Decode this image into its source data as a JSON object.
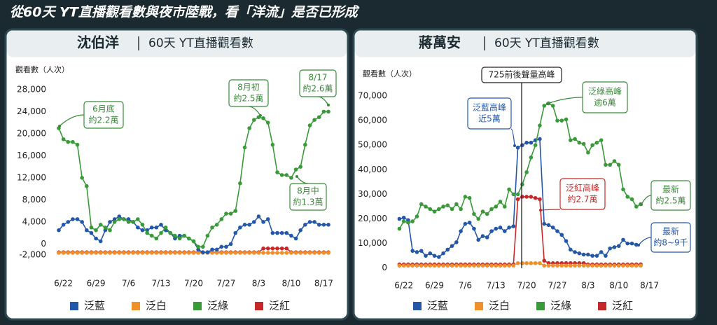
{
  "title": "從60天 YT直播觀看數與夜市陸戰，看「洋流」是否已形成",
  "chart_data": [
    {
      "type": "line",
      "title": "沈伯洋",
      "subtitle": "60天 YT直播觀看數",
      "y_label": "觀看數（人次）",
      "ylim": [
        -3000,
        29000
      ],
      "yticks": [
        {
          "value": -2000,
          "label": "-2,000"
        },
        0,
        {
          "value": 4000,
          "label": "4,000"
        },
        {
          "value": 8000,
          "label": "8,000"
        },
        {
          "value": 12000,
          "label": "12,000"
        },
        {
          "value": 16000,
          "label": "16,000"
        },
        {
          "value": 20000,
          "label": "20,000"
        },
        {
          "value": 24000,
          "label": "24,000"
        },
        {
          "value": 28000,
          "label": "28,000"
        }
      ],
      "xticks": [
        "6/22",
        "6/29",
        "7/6",
        "7/13",
        "7/20",
        "7/27",
        "8/3",
        "8/10",
        "8/17"
      ],
      "grid": false,
      "x": [
        "6/21",
        "6/22",
        "6/23",
        "6/24",
        "6/25",
        "6/26",
        "6/27",
        "6/28",
        "6/29",
        "6/30",
        "7/1",
        "7/2",
        "7/3",
        "7/4",
        "7/5",
        "7/6",
        "7/7",
        "7/8",
        "7/9",
        "7/10",
        "7/11",
        "7/12",
        "7/13",
        "7/14",
        "7/15",
        "7/16",
        "7/17",
        "7/18",
        "7/19",
        "7/20",
        "7/21",
        "7/22",
        "7/23",
        "7/24",
        "7/25",
        "7/26",
        "7/27",
        "7/28",
        "7/29",
        "7/30",
        "7/31",
        "8/1",
        "8/2",
        "8/3",
        "8/4",
        "8/5",
        "8/6",
        "8/7",
        "8/8",
        "8/9",
        "8/10",
        "8/11",
        "8/12",
        "8/13",
        "8/14",
        "8/15",
        "8/16",
        "8/17",
        "8/18"
      ],
      "series": [
        {
          "name": "泛藍",
          "color": "#2457a8",
          "values": [
            2500,
            3500,
            4000,
            4500,
            4500,
            4000,
            2500,
            2000,
            1000,
            500,
            2500,
            4000,
            4500,
            5000,
            4500,
            4500,
            4000,
            3000,
            2500,
            2500,
            3000,
            3000,
            3500,
            2500,
            2000,
            1000,
            1500,
            1500,
            1000,
            500,
            -1000,
            -1500,
            -1500,
            -1000,
            -1000,
            -500,
            -500,
            0,
            2000,
            3000,
            3500,
            3500,
            4000,
            5000,
            4000,
            4500,
            2000,
            2000,
            2000,
            2000,
            1500,
            1000,
            2500,
            3500,
            4000,
            4000,
            3500,
            3500,
            3500
          ]
        },
        {
          "name": "泛白",
          "color": "#f0902a",
          "values": [
            -1600,
            -1600,
            -1600,
            -1600,
            -1600,
            -1600,
            -1600,
            -1600,
            -1600,
            -1600,
            -1600,
            -1600,
            -1600,
            -1600,
            -1600,
            -1600,
            -1600,
            -1600,
            -1600,
            -1600,
            -1600,
            -1600,
            -1600,
            -1600,
            -1600,
            -1600,
            -1600,
            -1600,
            -1600,
            -1600,
            -1600,
            -1600,
            -1600,
            -1600,
            -1600,
            -1600,
            -1600,
            -1600,
            -1600,
            -1600,
            -1600,
            -1600,
            -1600,
            -1600,
            -1600,
            -1600,
            -1600,
            -1600,
            -1600,
            -1600,
            -1600,
            -1600,
            -1600,
            -1600,
            -1600,
            -1600,
            -1600,
            -1600,
            -1600
          ]
        },
        {
          "name": "泛綠",
          "color": "#3a9a3a",
          "values": [
            21000,
            19000,
            18500,
            18500,
            18000,
            12000,
            10500,
            3000,
            2500,
            3500,
            3000,
            2500,
            4000,
            4500,
            4500,
            4000,
            4000,
            4500,
            3500,
            2000,
            1500,
            1000,
            2000,
            3000,
            2000,
            1500,
            1000,
            1500,
            1000,
            500,
            -500,
            -500,
            1500,
            3000,
            3500,
            4500,
            5500,
            5500,
            6000,
            11000,
            17500,
            21000,
            22500,
            23000,
            22800,
            22000,
            18000,
            13000,
            12500,
            12500,
            12000,
            13500,
            14000,
            18000,
            21500,
            22500,
            23000,
            24000,
            24000
          ]
        },
        {
          "name": "泛紅",
          "color": "#c62828",
          "values": [
            -1500,
            -1500,
            -1500,
            -1500,
            -1500,
            -1500,
            -1500,
            -1500,
            -1500,
            -1500,
            -1500,
            -1500,
            -1500,
            -1500,
            -1500,
            -1500,
            -1500,
            -1500,
            -1500,
            -1500,
            -1500,
            -1500,
            -1500,
            -1500,
            -1500,
            -1500,
            -1500,
            -1500,
            -1500,
            -1500,
            -1500,
            -1500,
            -1500,
            -1500,
            -1500,
            -1500,
            -1500,
            -1500,
            -1500,
            -1500,
            -1500,
            -1500,
            -1500,
            -1500,
            -800,
            -800,
            -800,
            -800,
            -800,
            -800,
            -1500,
            -1500,
            -1500,
            -1500,
            -1500,
            -1500,
            -1500,
            -1500,
            -1500
          ]
        }
      ],
      "annotations": [
        {
          "lines": [
            "6月底",
            "約2.2萬"
          ],
          "color": "#3a8a3a"
        },
        {
          "lines": [
            "8月初",
            "約2.5萬"
          ],
          "color": "#3a8a3a"
        },
        {
          "lines": [
            "8/17",
            "約2.6萬"
          ],
          "color": "#3a8a3a"
        },
        {
          "lines": [
            "8月中",
            "約1.3萬"
          ],
          "color": "#3a8a3a"
        }
      ]
    },
    {
      "type": "line",
      "title": "蔣萬安",
      "subtitle": "60天 YT直播觀看數",
      "y_label": "觀看數（人次）",
      "ylim": [
        -1500,
        72000
      ],
      "yticks": [
        0,
        {
          "value": 10000,
          "label": "10,000"
        },
        {
          "value": 20000,
          "label": "20,000"
        },
        {
          "value": 30000,
          "label": "30,000"
        },
        {
          "value": 40000,
          "label": "40,000"
        },
        {
          "value": 50000,
          "label": "50,000"
        },
        {
          "value": 60000,
          "label": "60,000"
        },
        {
          "value": 70000,
          "label": "70,000"
        }
      ],
      "xticks": [
        "6/22",
        "6/29",
        "7/6",
        "7/13",
        "7/20",
        "7/27",
        "8/3",
        "8/10",
        "8/17"
      ],
      "grid": false,
      "x": [
        "6/21",
        "6/22",
        "6/23",
        "6/24",
        "6/25",
        "6/26",
        "6/27",
        "6/28",
        "6/29",
        "6/30",
        "7/1",
        "7/2",
        "7/3",
        "7/4",
        "7/5",
        "7/6",
        "7/7",
        "7/8",
        "7/9",
        "7/10",
        "7/11",
        "7/12",
        "7/13",
        "7/14",
        "7/15",
        "7/16",
        "7/17",
        "7/18",
        "7/19",
        "7/20",
        "7/21",
        "7/22",
        "7/23",
        "7/24",
        "7/25",
        "7/26",
        "7/27",
        "7/28",
        "7/29",
        "7/30",
        "7/31",
        "8/1",
        "8/2",
        "8/3",
        "8/4",
        "8/5",
        "8/6",
        "8/7",
        "8/8",
        "8/9",
        "8/10",
        "8/11",
        "8/12",
        "8/13",
        "8/14",
        "8/15"
      ],
      "series": [
        {
          "name": "泛藍",
          "color": "#2457a8",
          "values": [
            20000,
            20500,
            19500,
            7000,
            6500,
            7000,
            5000,
            6000,
            5000,
            4500,
            6000,
            7500,
            9000,
            10500,
            15000,
            18000,
            18500,
            16000,
            11500,
            13000,
            12500,
            15000,
            16000,
            16500,
            15000,
            16500,
            17000,
            49000,
            50000,
            51000,
            51000,
            52000,
            52500,
            18000,
            17500,
            16500,
            15000,
            13500,
            11000,
            7500,
            6500,
            6000,
            5500,
            5500,
            5000,
            5000,
            6500,
            5000,
            8000,
            8500,
            9000,
            11500,
            10000,
            10000,
            9500,
            null
          ]
        },
        {
          "name": "泛白",
          "color": "#f0902a",
          "values": [
            1000,
            1000,
            1000,
            1000,
            1000,
            1000,
            1000,
            1000,
            1000,
            1000,
            1000,
            1000,
            1000,
            1000,
            1000,
            1000,
            1000,
            1000,
            1000,
            1000,
            1000,
            1000,
            1000,
            1000,
            1000,
            1000,
            1000,
            2000,
            2000,
            2000,
            2000,
            2000,
            2000,
            1000,
            1000,
            1000,
            1000,
            1000,
            1000,
            1000,
            1000,
            1000,
            1000,
            1000,
            1000,
            1000,
            1000,
            1000,
            1000,
            1000,
            1000,
            1000,
            1000,
            1000,
            1000,
            1000
          ]
        },
        {
          "name": "泛綠",
          "color": "#3a9a3a",
          "values": [
            16000,
            19000,
            18500,
            19000,
            21000,
            26000,
            25000,
            24000,
            23000,
            24000,
            25000,
            25500,
            24000,
            26000,
            24000,
            29000,
            28500,
            22000,
            20000,
            23000,
            22000,
            24000,
            25000,
            27000,
            25000,
            32000,
            30000,
            30000,
            34000,
            39000,
            45000,
            50000,
            58000,
            66000,
            67000,
            66000,
            60000,
            60000,
            60500,
            52000,
            52500,
            51000,
            50500,
            47000,
            50000,
            51000,
            52000,
            42000,
            42000,
            43500,
            42000,
            32000,
            29000,
            28000,
            25000,
            26000
          ]
        },
        {
          "name": "泛紅",
          "color": "#c62828",
          "values": [
            1500,
            1500,
            1500,
            1500,
            1500,
            1500,
            1500,
            1500,
            1500,
            1500,
            1500,
            1500,
            1500,
            1500,
            1500,
            1500,
            1500,
            1500,
            1500,
            1500,
            1500,
            1500,
            1500,
            1500,
            1500,
            1500,
            1500,
            28000,
            29000,
            29000,
            29000,
            28500,
            28000,
            3000,
            2000,
            2000,
            2000,
            2000,
            2000,
            2000,
            2000,
            2000,
            2000,
            1500,
            1500,
            1500,
            1500,
            1500,
            1500,
            1500,
            1500,
            1500,
            1500,
            1500,
            1500,
            1500
          ]
        }
      ],
      "annotations": [
        {
          "lines": [
            "725前後聲量高峰"
          ],
          "color": "#222222"
        },
        {
          "lines": [
            "泛藍高峰",
            "近5萬"
          ],
          "color": "#2457a8"
        },
        {
          "lines": [
            "泛綠高峰",
            "逾6萬"
          ],
          "color": "#3a8a3a"
        },
        {
          "lines": [
            "泛紅高峰",
            "約2.7萬"
          ],
          "color": "#c62828"
        },
        {
          "lines": [
            "最新",
            "約2.5萬"
          ],
          "color": "#3a8a3a"
        },
        {
          "lines": [
            "最新",
            "約8~9千"
          ],
          "color": "#2457a8"
        }
      ]
    }
  ]
}
